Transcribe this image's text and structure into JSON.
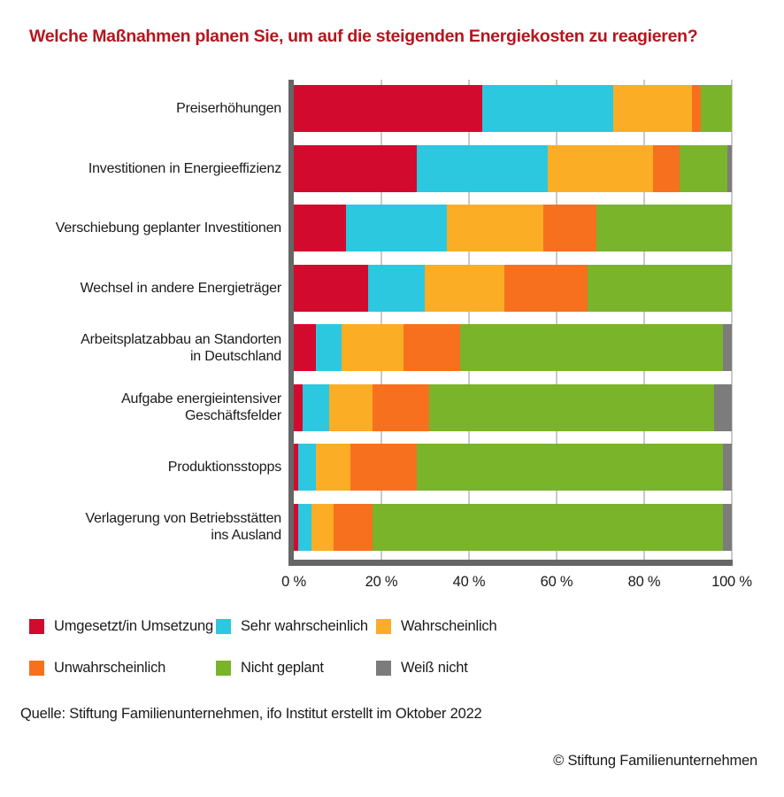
{
  "title": "Welche Maßnahmen planen Sie, um auf die steigenden Energiekosten zu reagieren?",
  "chart_data": {
    "type": "bar",
    "orientation": "horizontal",
    "stacked": true,
    "unit": "%",
    "xlim": [
      0,
      100
    ],
    "grid": true,
    "legend_position": "bottom",
    "x_ticks": [
      "0 %",
      "20 %",
      "40 %",
      "60 %",
      "80 %",
      "100 %"
    ],
    "x_tick_values": [
      0,
      20,
      40,
      60,
      80,
      100
    ],
    "categories": [
      "Preiserhöhungen",
      "Investitionen in Energieeffizienz",
      "Verschiebung geplanter Investitionen",
      "Wechsel in andere Energieträger",
      "Arbeitsplatzabbau an Standorten\nin Deutschland",
      "Aufgabe energieintensiver\nGeschäftsfelder",
      "Produktionsstopps",
      "Verlagerung von Betriebsstätten\nins Ausland"
    ],
    "series": [
      {
        "name": "Umgesetzt/in Umsetzung",
        "color": "#d20a2e",
        "values": [
          43,
          28,
          12,
          17,
          5,
          2,
          1,
          1
        ]
      },
      {
        "name": "Sehr wahrscheinlich",
        "color": "#2bc8e0",
        "values": [
          30,
          30,
          23,
          13,
          6,
          6,
          4,
          3
        ]
      },
      {
        "name": "Wahrscheinlich",
        "color": "#fbae25",
        "values": [
          18,
          24,
          22,
          18,
          14,
          10,
          8,
          5
        ]
      },
      {
        "name": "Unwahrscheinlich",
        "color": "#f7701d",
        "values": [
          2,
          6,
          12,
          19,
          13,
          13,
          15,
          9
        ]
      },
      {
        "name": "Nicht geplant",
        "color": "#7ab42a",
        "values": [
          7,
          11,
          31,
          33,
          60,
          65,
          70,
          80
        ]
      },
      {
        "name": "Weiß nicht",
        "color": "#7c7c7c",
        "values": [
          0,
          1,
          0,
          0,
          2,
          4,
          2,
          2
        ]
      }
    ]
  },
  "source": "Quelle: Stiftung Familienunternehmen, ifo Institut erstellt im Oktober 2022",
  "copyright": "© Stiftung Familienunternehmen",
  "colors": {
    "title": "#b5161f",
    "axis": "#666666",
    "gridline": "#c9c9c9",
    "text": "#1a1a1a",
    "background": "#ffffff"
  }
}
